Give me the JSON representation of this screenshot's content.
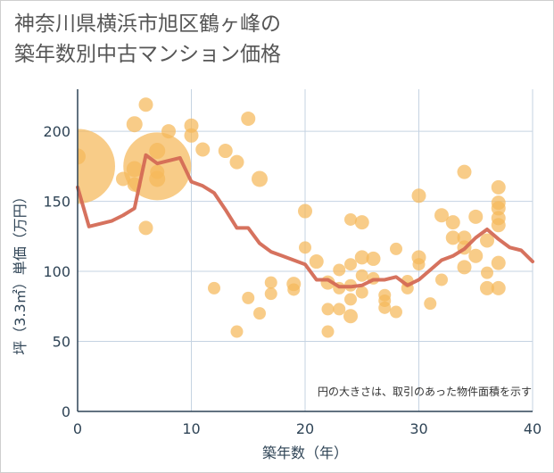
{
  "chart_data": {
    "type": "scatter",
    "title": "神奈川県横浜市旭区鶴ヶ峰の\n築年数別中古マンション価格",
    "xlabel": "築年数（年）",
    "ylabel": "坪（3.3㎡）単価（万円）",
    "xlim": [
      0,
      40
    ],
    "ylim": [
      0,
      230
    ],
    "xticks": [
      "0",
      "10",
      "20",
      "30",
      "40"
    ],
    "yticks": [
      "0",
      "50",
      "100",
      "150",
      "200"
    ],
    "grid": true,
    "annotation": "円の大きさは、取引のあった物件面積を示す",
    "colors": {
      "bubble": "#f5b85a",
      "line": "#d46a55",
      "grid": "#c5d3e2"
    },
    "bubbles": [
      {
        "x": 0,
        "y": 175,
        "r": 42
      },
      {
        "x": 0,
        "y": 182,
        "r": 9
      },
      {
        "x": 4,
        "y": 166,
        "r": 8
      },
      {
        "x": 5,
        "y": 205,
        "r": 9
      },
      {
        "x": 5,
        "y": 173,
        "r": 9
      },
      {
        "x": 5,
        "y": 162,
        "r": 8
      },
      {
        "x": 6,
        "y": 219,
        "r": 8
      },
      {
        "x": 6,
        "y": 131,
        "r": 8
      },
      {
        "x": 7,
        "y": 175,
        "r": 38
      },
      {
        "x": 7,
        "y": 186,
        "r": 9
      },
      {
        "x": 7,
        "y": 171,
        "r": 8
      },
      {
        "x": 7,
        "y": 166,
        "r": 9
      },
      {
        "x": 8,
        "y": 200,
        "r": 8
      },
      {
        "x": 10,
        "y": 204,
        "r": 8
      },
      {
        "x": 10,
        "y": 197,
        "r": 8
      },
      {
        "x": 11,
        "y": 187,
        "r": 8
      },
      {
        "x": 12,
        "y": 88,
        "r": 7
      },
      {
        "x": 13,
        "y": 186,
        "r": 8
      },
      {
        "x": 14,
        "y": 178,
        "r": 8
      },
      {
        "x": 14,
        "y": 57,
        "r": 7
      },
      {
        "x": 15,
        "y": 209,
        "r": 8
      },
      {
        "x": 15,
        "y": 81,
        "r": 7
      },
      {
        "x": 16,
        "y": 166,
        "r": 9
      },
      {
        "x": 16,
        "y": 70,
        "r": 7
      },
      {
        "x": 17,
        "y": 92,
        "r": 7
      },
      {
        "x": 17,
        "y": 84,
        "r": 7
      },
      {
        "x": 19,
        "y": 91,
        "r": 8
      },
      {
        "x": 19,
        "y": 87,
        "r": 7
      },
      {
        "x": 20,
        "y": 143,
        "r": 8
      },
      {
        "x": 20,
        "y": 117,
        "r": 7
      },
      {
        "x": 21,
        "y": 107,
        "r": 8
      },
      {
        "x": 22,
        "y": 92,
        "r": 8
      },
      {
        "x": 22,
        "y": 73,
        "r": 7
      },
      {
        "x": 22,
        "y": 57,
        "r": 7
      },
      {
        "x": 23,
        "y": 101,
        "r": 7
      },
      {
        "x": 23,
        "y": 88,
        "r": 7
      },
      {
        "x": 23,
        "y": 73,
        "r": 7
      },
      {
        "x": 24,
        "y": 137,
        "r": 7
      },
      {
        "x": 24,
        "y": 105,
        "r": 7
      },
      {
        "x": 24,
        "y": 90,
        "r": 7
      },
      {
        "x": 24,
        "y": 80,
        "r": 7
      },
      {
        "x": 24,
        "y": 68,
        "r": 8
      },
      {
        "x": 25,
        "y": 135,
        "r": 8
      },
      {
        "x": 25,
        "y": 110,
        "r": 8
      },
      {
        "x": 25,
        "y": 97,
        "r": 7
      },
      {
        "x": 25,
        "y": 85,
        "r": 7
      },
      {
        "x": 26,
        "y": 109,
        "r": 8
      },
      {
        "x": 26,
        "y": 95,
        "r": 7
      },
      {
        "x": 27,
        "y": 83,
        "r": 7
      },
      {
        "x": 27,
        "y": 79,
        "r": 7
      },
      {
        "x": 27,
        "y": 74,
        "r": 7
      },
      {
        "x": 28,
        "y": 116,
        "r": 7
      },
      {
        "x": 28,
        "y": 71,
        "r": 7
      },
      {
        "x": 29,
        "y": 93,
        "r": 7
      },
      {
        "x": 29,
        "y": 88,
        "r": 7
      },
      {
        "x": 30,
        "y": 154,
        "r": 8
      },
      {
        "x": 30,
        "y": 110,
        "r": 8
      },
      {
        "x": 30,
        "y": 105,
        "r": 7
      },
      {
        "x": 31,
        "y": 77,
        "r": 7
      },
      {
        "x": 32,
        "y": 140,
        "r": 8
      },
      {
        "x": 32,
        "y": 94,
        "r": 7
      },
      {
        "x": 33,
        "y": 135,
        "r": 8
      },
      {
        "x": 33,
        "y": 124,
        "r": 8
      },
      {
        "x": 34,
        "y": 171,
        "r": 8
      },
      {
        "x": 34,
        "y": 124,
        "r": 8
      },
      {
        "x": 34,
        "y": 117,
        "r": 8
      },
      {
        "x": 34,
        "y": 103,
        "r": 8
      },
      {
        "x": 35,
        "y": 139,
        "r": 8
      },
      {
        "x": 35,
        "y": 111,
        "r": 8
      },
      {
        "x": 36,
        "y": 122,
        "r": 8
      },
      {
        "x": 36,
        "y": 99,
        "r": 7
      },
      {
        "x": 36,
        "y": 88,
        "r": 8
      },
      {
        "x": 37,
        "y": 160,
        "r": 8
      },
      {
        "x": 37,
        "y": 149,
        "r": 8
      },
      {
        "x": 37,
        "y": 145,
        "r": 8
      },
      {
        "x": 37,
        "y": 138,
        "r": 8
      },
      {
        "x": 37,
        "y": 133,
        "r": 8
      },
      {
        "x": 37,
        "y": 106,
        "r": 8
      },
      {
        "x": 37,
        "y": 88,
        "r": 8
      }
    ],
    "series": [
      {
        "x": [
          0,
          1,
          2,
          3,
          4,
          5,
          6,
          7,
          8,
          9,
          10,
          11,
          12,
          13,
          14,
          15,
          16,
          17,
          18,
          19,
          20,
          21,
          22,
          23,
          24,
          25,
          26,
          27,
          28,
          29,
          30,
          31,
          32,
          33,
          34,
          35,
          36,
          37,
          38,
          39,
          40
        ],
        "values": [
          160,
          132,
          134,
          136,
          140,
          145,
          183,
          177,
          179,
          181,
          164,
          161,
          156,
          144,
          131,
          131,
          120,
          114,
          111,
          108,
          105,
          94,
          94,
          89,
          89,
          90,
          94,
          94,
          96,
          90,
          94,
          101,
          108,
          111,
          116,
          124,
          130,
          123,
          117,
          115,
          107
        ]
      }
    ]
  }
}
